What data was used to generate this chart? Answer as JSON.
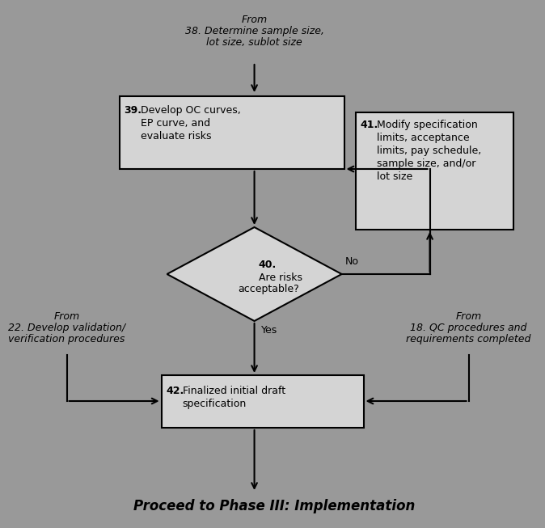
{
  "bg_color": "#999999",
  "box_fill": "#d4d4d4",
  "box_edge": "#000000",
  "arrow_color": "#000000",
  "text_color": "#000000",
  "title_text": "Proceed to Phase III: Implementation",
  "from_top_line1": "From",
  "from_top_line2": "38. Determine sample size,",
  "from_top_line3": "lot size, sublot size",
  "box39_text": "39. Develop OC curves,\n    EP curve, and\n    evaluate risks",
  "box41_text": "41. Modify specification\n     limits, acceptance\n     limits, pay schedule,\n     sample size, and/or\n     lot size",
  "diamond40_text": "40. Are risks\nacceptable?",
  "box42_text": "42. Finalized initial draft\n     specification",
  "from_left_line1": "From",
  "from_left_line2": "22. Develop validation/",
  "from_left_line3": "verification procedures",
  "from_right_line1": "From",
  "from_right_line2": "18. QC procedures and",
  "from_right_line3": "requirements completed",
  "yes_label": "Yes",
  "no_label": "No",
  "font_size_main": 9,
  "font_size_title": 12,
  "lw": 1.5
}
